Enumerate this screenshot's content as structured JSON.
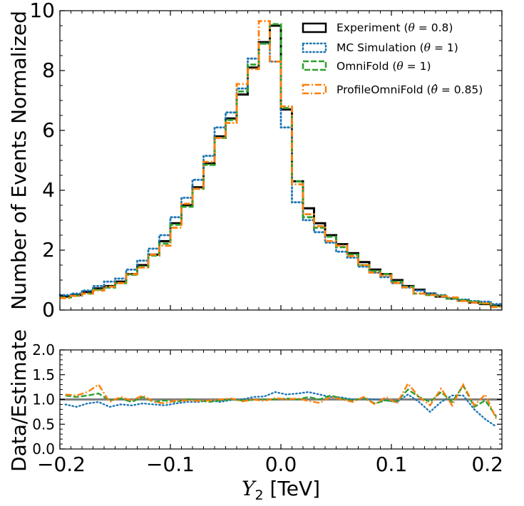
{
  "chart_data": [
    {
      "type": "line",
      "drawstyle": "steps",
      "ylabel": "Number of Events Normalized",
      "xlim": [
        -0.2,
        0.2
      ],
      "ylim": [
        0,
        10
      ],
      "yticks": [
        "0",
        "2",
        "4",
        "6",
        "8",
        "10"
      ],
      "yticks_values": [
        0,
        2,
        4,
        6,
        8,
        10
      ],
      "legend_position": "top-right",
      "bin_edges": [
        -0.2,
        -0.19,
        -0.18,
        -0.17,
        -0.16,
        -0.15,
        -0.14,
        -0.13,
        -0.12,
        -0.11,
        -0.1,
        -0.09,
        -0.08,
        -0.07,
        -0.06,
        -0.05,
        -0.04,
        -0.03,
        -0.02,
        -0.01,
        0.0,
        0.01,
        0.02,
        0.03,
        0.04,
        0.05,
        0.06,
        0.07,
        0.08,
        0.09,
        0.1,
        0.11,
        0.12,
        0.13,
        0.14,
        0.15,
        0.16,
        0.17,
        0.18,
        0.19,
        0.2
      ],
      "series": [
        {
          "key": "experiment",
          "name": "Experiment ($\\theta = 0.8$)",
          "label_main": "Experiment (",
          "label_symbol": "θ",
          "label_rest": " = 0.8)",
          "color": "#000000",
          "style": "solid",
          "values": [
            0.45,
            0.5,
            0.6,
            0.72,
            0.8,
            0.95,
            1.2,
            1.5,
            1.85,
            2.3,
            2.9,
            3.5,
            4.1,
            4.9,
            5.8,
            6.4,
            7.2,
            8.1,
            8.95,
            9.5,
            6.7,
            4.3,
            3.4,
            2.9,
            2.5,
            2.2,
            1.9,
            1.6,
            1.35,
            1.2,
            1.0,
            0.8,
            0.68,
            0.55,
            0.45,
            0.38,
            0.32,
            0.25,
            0.2,
            0.15
          ]
        },
        {
          "key": "mc",
          "name": "MC Simulation ($\\theta = 1$)",
          "label_main": "MC Simulation (",
          "label_symbol": "θ",
          "label_rest": " = 1)",
          "color": "#1f77b4",
          "style": "dotted",
          "values": [
            0.5,
            0.55,
            0.65,
            0.8,
            0.95,
            1.05,
            1.35,
            1.65,
            2.05,
            2.5,
            3.1,
            3.75,
            4.35,
            5.15,
            6.1,
            6.6,
            7.4,
            8.4,
            8.9,
            8.3,
            6.1,
            3.6,
            3.0,
            2.6,
            2.25,
            1.95,
            1.75,
            1.45,
            1.25,
            1.1,
            0.9,
            0.75,
            0.65,
            0.55,
            0.5,
            0.4,
            0.35,
            0.3,
            0.28,
            0.2
          ]
        },
        {
          "key": "omnifold",
          "name": "OmniFold ($\\theta = 1$)",
          "label_main": "OmniFold (",
          "label_symbol": "θ",
          "label_rest": " = 1)",
          "color": "#2ca02c",
          "style": "dashed",
          "values": [
            0.42,
            0.48,
            0.55,
            0.68,
            0.75,
            0.9,
            1.18,
            1.45,
            1.82,
            2.22,
            2.85,
            3.45,
            4.05,
            4.85,
            5.75,
            6.35,
            7.3,
            8.2,
            8.9,
            9.55,
            6.75,
            4.3,
            3.1,
            2.75,
            2.45,
            2.1,
            1.85,
            1.5,
            1.3,
            1.2,
            0.95,
            0.78,
            0.55,
            0.5,
            0.48,
            0.38,
            0.33,
            0.28,
            0.22,
            0.12
          ]
        },
        {
          "key": "profileomnifold",
          "name": "ProfileOmniFold ($\\hat{\\theta} = 0.85$)",
          "label_main": "ProfileOmniFold (",
          "label_symbol": "θ̂",
          "label_rest": " = 0.85)",
          "color": "#ff7f0e",
          "style": "dashdot",
          "values": [
            0.4,
            0.47,
            0.55,
            0.65,
            0.78,
            0.9,
            1.2,
            1.42,
            1.85,
            2.15,
            2.75,
            3.55,
            4.05,
            4.95,
            5.75,
            6.25,
            7.55,
            8.05,
            9.65,
            8.3,
            6.8,
            4.2,
            3.2,
            2.8,
            2.3,
            2.15,
            1.8,
            1.5,
            1.25,
            1.15,
            0.9,
            0.76,
            0.55,
            0.5,
            0.46,
            0.42,
            0.3,
            0.25,
            0.22,
            0.1
          ]
        }
      ]
    },
    {
      "type": "line",
      "xlabel_main": "Y",
      "xlabel_sub": "2",
      "xlabel_rest": " [TeV]",
      "ylabel": "Data/Estimate",
      "xlim": [
        -0.2,
        0.2
      ],
      "ylim": [
        0.0,
        2.0
      ],
      "xticks": [
        "−0.2",
        "−0.1",
        "0.0",
        "0.1",
        "0.2"
      ],
      "xticks_values": [
        -0.2,
        -0.1,
        0.0,
        0.1,
        0.2
      ],
      "yticks": [
        "0.0",
        "0.5",
        "1.0",
        "1.5",
        "2.0"
      ],
      "yticks_values": [
        0.0,
        0.5,
        1.0,
        1.5,
        2.0
      ],
      "reference_line": 1.0,
      "reference_color": "#808080",
      "bin_centers": [
        -0.195,
        -0.185,
        -0.175,
        -0.165,
        -0.155,
        -0.145,
        -0.135,
        -0.125,
        -0.115,
        -0.105,
        -0.095,
        -0.085,
        -0.075,
        -0.065,
        -0.055,
        -0.045,
        -0.035,
        -0.025,
        -0.015,
        -0.005,
        0.005,
        0.015,
        0.025,
        0.035,
        0.045,
        0.055,
        0.065,
        0.075,
        0.085,
        0.095,
        0.105,
        0.115,
        0.125,
        0.135,
        0.145,
        0.155,
        0.165,
        0.175,
        0.185,
        0.195
      ],
      "series": [
        {
          "key": "mc",
          "color": "#1f77b4",
          "style": "dotted",
          "values": [
            0.9,
            0.85,
            0.92,
            0.95,
            0.85,
            0.9,
            0.88,
            0.92,
            0.9,
            0.88,
            0.92,
            0.95,
            0.95,
            0.98,
            0.95,
            0.99,
            1.0,
            1.05,
            1.06,
            1.15,
            1.1,
            1.12,
            1.15,
            1.1,
            1.05,
            1.04,
            1.0,
            1.02,
            1.0,
            0.98,
            0.95,
            1.1,
            0.95,
            0.75,
            0.95,
            1.08,
            1.08,
            0.8,
            0.6,
            0.45
          ]
        },
        {
          "key": "omnifold",
          "color": "#2ca02c",
          "style": "dashed",
          "values": [
            1.08,
            1.05,
            1.08,
            1.12,
            0.98,
            1.02,
            0.95,
            1.05,
            0.95,
            0.98,
            0.95,
            1.0,
            0.98,
            0.95,
            0.98,
            1.0,
            0.98,
            0.99,
            1.0,
            1.0,
            1.02,
            1.0,
            1.05,
            1.0,
            1.08,
            1.02,
            0.98,
            1.03,
            0.92,
            0.98,
            0.96,
            1.2,
            1.05,
            0.95,
            1.15,
            0.95,
            1.28,
            0.85,
            0.98,
            0.65
          ]
        },
        {
          "key": "profileomnifold",
          "color": "#ff7f0e",
          "style": "dashdot",
          "values": [
            1.1,
            1.08,
            1.15,
            1.3,
            0.95,
            1.05,
            0.98,
            1.08,
            0.95,
            0.92,
            0.98,
            0.98,
            0.97,
            0.98,
            1.0,
            1.02,
            0.96,
            1.0,
            0.97,
            1.03,
            1.0,
            1.02,
            0.97,
            0.93,
            1.05,
            1.0,
            0.95,
            1.05,
            0.9,
            1.05,
            0.92,
            1.32,
            1.05,
            0.88,
            1.22,
            0.88,
            1.3,
            0.88,
            1.1,
            0.6
          ]
        }
      ]
    }
  ]
}
